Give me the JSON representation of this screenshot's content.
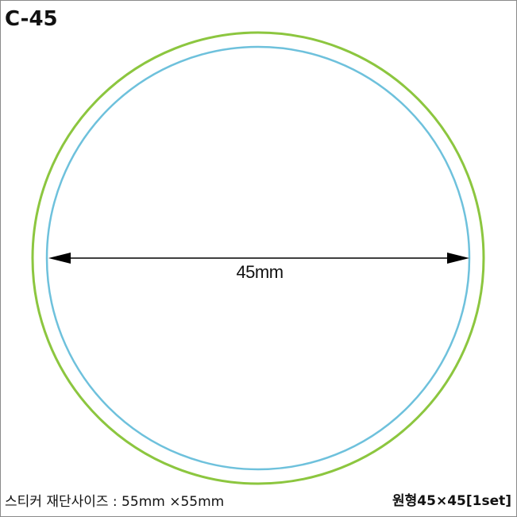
{
  "title": "C-45",
  "dimension_label": "45mm",
  "cut_size_label": "스티커 재단사이즈 : 55mm ×55mm",
  "shape_label": "원형45×45[1set]",
  "colors": {
    "cut_line": "#8cc63f",
    "inner_line": "#6ec1dc",
    "dimension_line": "#000000",
    "border": "#8a8a8a"
  }
}
